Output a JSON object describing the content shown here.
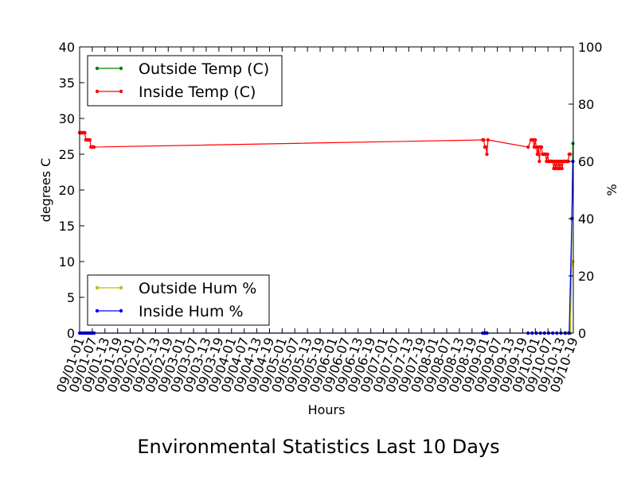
{
  "chart_data": {
    "type": "line",
    "title": "Environmental Statistics Last 10 Days",
    "xlabel": "Hours",
    "ylabel_left": "degrees C",
    "ylabel_right": "%",
    "ylim_left": [
      0,
      40
    ],
    "ylim_right": [
      0,
      100
    ],
    "yticks_left": [
      "0",
      "5",
      "10",
      "15",
      "20",
      "25",
      "30",
      "35",
      "40"
    ],
    "yticks_right": [
      "0",
      "20",
      "40",
      "60",
      "80",
      "100"
    ],
    "xticks": [
      "09/01-01",
      "09/01-07",
      "09/01-13",
      "09/01-19",
      "09/02-01",
      "09/02-07",
      "09/02-13",
      "09/02-19",
      "09/03-01",
      "09/03-07",
      "09/03-13",
      "09/03-19",
      "09/04-01",
      "09/04-07",
      "09/04-13",
      "09/04-19",
      "09/05-01",
      "09/05-07",
      "09/05-13",
      "09/05-19",
      "09/06-01",
      "09/06-07",
      "09/06-13",
      "09/06-19",
      "09/07-01",
      "09/07-07",
      "09/07-13",
      "09/07-19",
      "09/08-01",
      "09/08-07",
      "09/08-13",
      "09/08-19",
      "09/09-01",
      "09/09-07",
      "09/09-13",
      "09/09-19",
      "09/10-01",
      "09/10-07",
      "09/10-13",
      "09/10-19"
    ],
    "x_unit": "hours",
    "xlim": [
      0,
      240
    ],
    "legend_temp": {
      "placement": "top-left",
      "entries": [
        "Outside Temp (C)",
        "Inside Temp (C)"
      ]
    },
    "legend_hum": {
      "placement": "bottom-left",
      "entries": [
        "Outside Hum %",
        "Inside Hum %"
      ]
    },
    "series": [
      {
        "name": "Outside Temp (C)",
        "axis": "left",
        "color": "#008000",
        "x": [
          236.5,
          237.5,
          238.5,
          239.3,
          239.8
        ],
        "y": [
          0,
          0,
          0,
          16,
          26.5
        ]
      },
      {
        "name": "Inside Temp (C)",
        "axis": "left",
        "color": "#ff0000",
        "x": [
          0,
          0.5,
          1,
          1.5,
          2,
          2.5,
          3,
          3.5,
          4,
          4.5,
          5,
          5.5,
          6,
          6.5,
          7,
          196,
          196.5,
          197,
          197.5,
          198,
          198.5,
          218,
          219.5,
          220,
          220.5,
          221,
          221.5,
          222,
          222.5,
          223,
          223.5,
          224,
          224.5,
          225,
          225.5,
          226,
          226.5,
          227,
          227.5,
          228,
          228.5,
          229,
          229.5,
          230,
          230.5,
          231,
          231.5,
          232,
          232.5,
          233,
          233.5,
          234,
          234.5,
          235,
          235.5,
          236,
          236.5,
          237,
          237.5,
          238,
          238.5
        ],
        "y": [
          28,
          28,
          28,
          28,
          28,
          28,
          27,
          27,
          27,
          27,
          27,
          26,
          26,
          26,
          26,
          27,
          27,
          26,
          26,
          25,
          27,
          26,
          27,
          27,
          27,
          26,
          27,
          26,
          25,
          26,
          24,
          26,
          26,
          25,
          25,
          25,
          25,
          24,
          25,
          24,
          24,
          24,
          24,
          24,
          23,
          24,
          23,
          24,
          23,
          24,
          23,
          24,
          23,
          24,
          24,
          24,
          24,
          24,
          24,
          25,
          25
        ]
      },
      {
        "name": "Outside Hum %",
        "axis": "right",
        "color": "#bfbf00",
        "x": [
          236.5,
          237.5,
          238.5,
          239.3,
          239.8
        ],
        "y": [
          0,
          0,
          0,
          24,
          25
        ]
      },
      {
        "name": "Inside Hum %",
        "axis": "right",
        "color": "#0000ff",
        "x": [
          0,
          1,
          2,
          3,
          4,
          5,
          6,
          7,
          196,
          197,
          198,
          218,
          220,
          222,
          224,
          226,
          228,
          230,
          232,
          234,
          236,
          238,
          239.3,
          239.8
        ],
        "y": [
          0,
          0,
          0,
          0,
          0,
          0,
          0,
          0,
          0,
          0,
          0,
          0,
          0,
          0,
          0,
          0,
          0,
          0,
          0,
          0,
          0,
          0,
          40,
          60
        ]
      }
    ]
  }
}
